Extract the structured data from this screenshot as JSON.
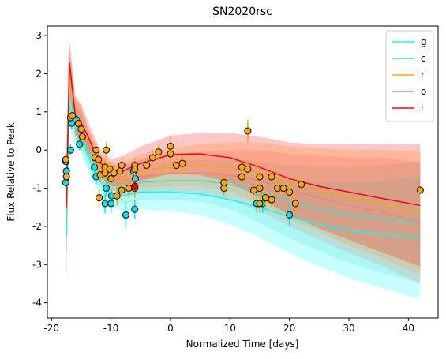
{
  "chart_data": {
    "type": "line",
    "title": "SN2020rsc",
    "xlabel": "Normalized Time [days]",
    "ylabel": "Flux Relative to Peak",
    "xlim": [
      -20.7,
      45
    ],
    "ylim": [
      -4.4,
      3.25
    ],
    "xticks": [
      -20,
      -10,
      0,
      10,
      20,
      30,
      40
    ],
    "yticks": [
      -4,
      -3,
      -2,
      -1,
      0,
      1,
      2,
      3
    ],
    "legend": "upper right",
    "x": [
      -17.5,
      -17,
      -16,
      -15,
      -14,
      -12,
      -10,
      -8,
      -5,
      0,
      5,
      10,
      15,
      20,
      25,
      30,
      35,
      42
    ],
    "series": [
      {
        "name": "g",
        "color": "#00ffff",
        "values": [
          -2.2,
          1.2,
          0.6,
          0.4,
          -0.1,
          -0.8,
          -1.15,
          -1.2,
          -1.1,
          -1.1,
          -1.15,
          -1.3,
          -1.5,
          -1.75,
          -1.95,
          -2.1,
          -2.2,
          -2.3
        ],
        "errors": [
          1.4,
          0.6,
          0.5,
          0.5,
          0.4,
          0.35,
          0.35,
          0.4,
          0.45,
          0.5,
          0.55,
          0.65,
          0.8,
          0.95,
          1.1,
          1.25,
          1.4,
          1.6
        ]
      },
      {
        "name": "c",
        "color": "#40e0d0",
        "values": [
          -2.0,
          1.5,
          0.7,
          0.5,
          0.0,
          -0.6,
          -0.9,
          -1.0,
          -0.85,
          -0.8,
          -0.8,
          -0.9,
          -1.1,
          -1.35,
          -1.55,
          -1.7,
          -1.8,
          -1.9
        ],
        "errors": [
          1.4,
          0.6,
          0.5,
          0.5,
          0.4,
          0.35,
          0.35,
          0.4,
          0.45,
          0.5,
          0.55,
          0.65,
          0.8,
          0.95,
          1.1,
          1.25,
          1.4,
          1.6
        ]
      },
      {
        "name": "r",
        "color": "#ffa500",
        "values": [
          -1.5,
          2.0,
          0.8,
          0.6,
          0.2,
          -0.4,
          -0.7,
          -0.7,
          -0.55,
          -0.45,
          -0.4,
          -0.45,
          -0.6,
          -0.85,
          -1.05,
          -1.25,
          -1.4,
          -1.65
        ],
        "errors": [
          1.4,
          0.6,
          0.5,
          0.5,
          0.4,
          0.35,
          0.35,
          0.4,
          0.45,
          0.5,
          0.55,
          0.65,
          0.8,
          0.95,
          1.1,
          1.25,
          1.4,
          1.6
        ]
      },
      {
        "name": "o",
        "color": "#fa8072",
        "values": [
          -1.6,
          2.2,
          0.9,
          0.65,
          0.25,
          -0.45,
          -0.75,
          -0.8,
          -0.7,
          -0.6,
          -0.6,
          -0.65,
          -0.8,
          -1.05,
          -1.25,
          -1.45,
          -1.6,
          -1.9
        ],
        "errors": [
          1.4,
          0.6,
          0.5,
          0.5,
          0.4,
          0.35,
          0.35,
          0.4,
          0.45,
          0.5,
          0.55,
          0.65,
          0.8,
          0.95,
          1.1,
          1.25,
          1.4,
          1.6
        ]
      },
      {
        "name": "i",
        "color": "#ff0000",
        "values": [
          -1.5,
          2.3,
          0.9,
          0.7,
          0.4,
          -0.3,
          -0.6,
          -0.55,
          -0.35,
          -0.12,
          -0.1,
          -0.2,
          -0.45,
          -0.75,
          -0.95,
          -1.1,
          -1.25,
          -1.45
        ],
        "errors": [
          1.4,
          0.6,
          0.5,
          0.5,
          0.4,
          0.35,
          0.35,
          0.4,
          0.45,
          0.5,
          0.55,
          0.65,
          0.8,
          0.95,
          1.1,
          1.25,
          1.4,
          1.6
        ]
      }
    ],
    "observations": [
      {
        "color": "#00e5ee",
        "x": [
          -17.6,
          -17.5,
          -17.6,
          -16.8,
          -16.6,
          -15.9,
          -15.3,
          -12.8,
          -12.5,
          -11,
          -10.8,
          -10,
          -9.9,
          -7.5,
          -6,
          -6.2,
          -5.9,
          14.5,
          15.5,
          20
        ],
        "values": [
          -0.3,
          -0.55,
          -0.85,
          0.0,
          0.7,
          0.8,
          0.15,
          -0.45,
          -0.7,
          -1.4,
          -1.0,
          -1.4,
          -1.2,
          -1.7,
          -1.55,
          -0.55,
          -0.75,
          -1.4,
          -1.4,
          -1.7
        ],
        "errors": [
          0.15,
          0.15,
          0.15,
          0.15,
          0.15,
          0.15,
          0.15,
          0.2,
          0.2,
          0.25,
          0.2,
          0.25,
          0.2,
          0.35,
          0.25,
          0.2,
          0.2,
          0.25,
          0.25,
          0.3
        ]
      },
      {
        "color": "#ffa500",
        "x": [
          -17.6,
          -17.5,
          -16.8,
          -16.5,
          -15.5,
          -15,
          -14.8,
          -12.7,
          -12.5,
          -12.1,
          -11.8,
          -12,
          -11,
          -11,
          -10.8,
          -10.2,
          -10,
          -9.5,
          -9,
          -8.5,
          -8.2,
          -8.2,
          -7,
          -6,
          -6,
          -6,
          -4,
          -3,
          -2,
          0,
          0,
          1,
          2,
          9,
          9,
          12,
          12,
          13,
          13,
          14,
          15,
          15,
          15,
          16,
          17,
          17,
          18,
          19,
          20,
          21,
          22,
          42
        ],
        "values": [
          -0.25,
          -0.7,
          0.85,
          0.9,
          0.7,
          0.55,
          0.35,
          -0.2,
          0.0,
          -0.25,
          -0.65,
          -1.25,
          -0.45,
          -0.6,
          0.0,
          -0.5,
          -0.75,
          -0.6,
          -1.2,
          -0.55,
          -1.05,
          -0.4,
          -1.0,
          -0.4,
          -0.5,
          -1.0,
          -0.4,
          -0.2,
          -0.05,
          0.1,
          -0.1,
          -0.4,
          -0.35,
          -0.85,
          -1.0,
          -0.45,
          -0.7,
          0.5,
          -0.5,
          -1.05,
          -0.7,
          -1.0,
          -1.4,
          -1.25,
          -0.7,
          -1.3,
          -1.0,
          -1.0,
          -1.1,
          -1.4,
          -0.9,
          -1.05
        ],
        "errors": [
          0.15,
          0.15,
          0.1,
          0.1,
          0.15,
          0.15,
          0.15,
          0.2,
          0.2,
          0.2,
          0.2,
          0.25,
          0.2,
          0.2,
          0.2,
          0.2,
          0.2,
          0.2,
          0.25,
          0.2,
          0.25,
          0.2,
          0.25,
          0.2,
          0.2,
          0.25,
          0.2,
          0.2,
          0.2,
          0.25,
          0.25,
          0.2,
          0.2,
          0.2,
          0.2,
          0.2,
          0.2,
          0.3,
          0.25,
          0.25,
          0.25,
          0.25,
          0.25,
          0.25,
          0.2,
          0.2,
          0.2,
          0.2,
          0.25,
          0.25,
          0.2,
          0.1
        ]
      },
      {
        "color": "#ff0000",
        "x": [
          -6
        ],
        "values": [
          -0.95
        ],
        "errors": [
          0.15
        ]
      }
    ]
  }
}
